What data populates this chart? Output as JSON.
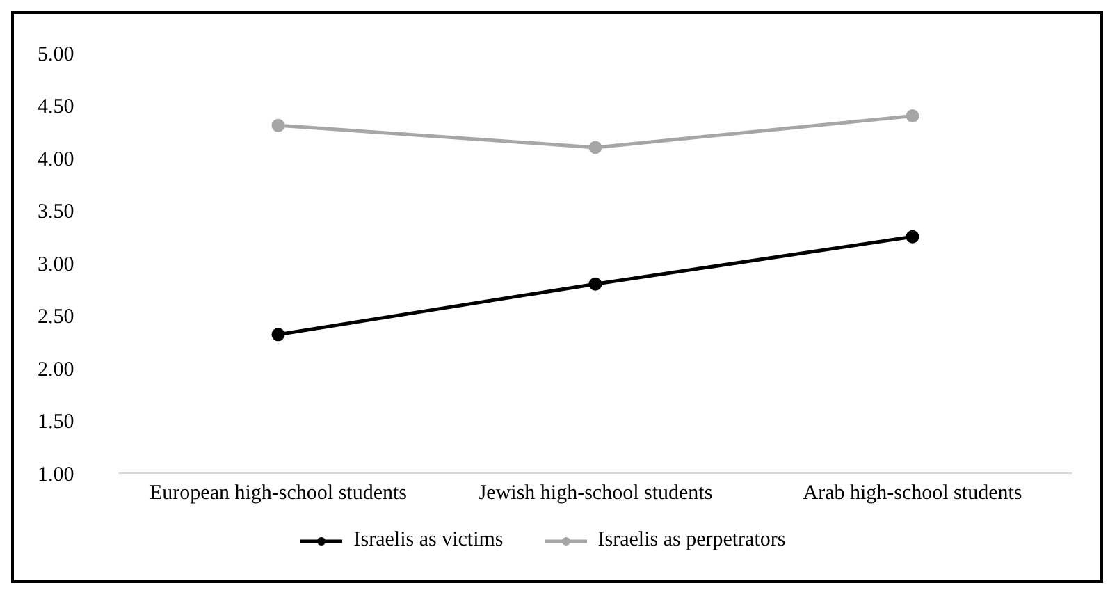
{
  "chart_data": {
    "type": "line",
    "categories": [
      "European high-school students",
      "Jewish high-school students",
      "Arab high-school students"
    ],
    "series": [
      {
        "name": "Israelis as victims",
        "color": "#000000",
        "values": [
          2.32,
          2.8,
          3.25
        ]
      },
      {
        "name": "Israelis as perpetrators",
        "color": "#a6a6a6",
        "values": [
          4.31,
          4.1,
          4.4
        ]
      }
    ],
    "ylim": [
      1,
      5
    ],
    "yticks": [
      {
        "value": 1,
        "label": "1.00"
      },
      {
        "value": 1.5,
        "label": "1.50"
      },
      {
        "value": 2,
        "label": "2.00"
      },
      {
        "value": 2.5,
        "label": "2.50"
      },
      {
        "value": 3,
        "label": "3.00"
      },
      {
        "value": 3.5,
        "label": "3.50"
      },
      {
        "value": 4,
        "label": "4.00"
      },
      {
        "value": 4.5,
        "label": "4.50"
      },
      {
        "value": 5,
        "label": "5.00"
      }
    ],
    "grid": false,
    "legend": "bottom",
    "marker": "circle"
  }
}
